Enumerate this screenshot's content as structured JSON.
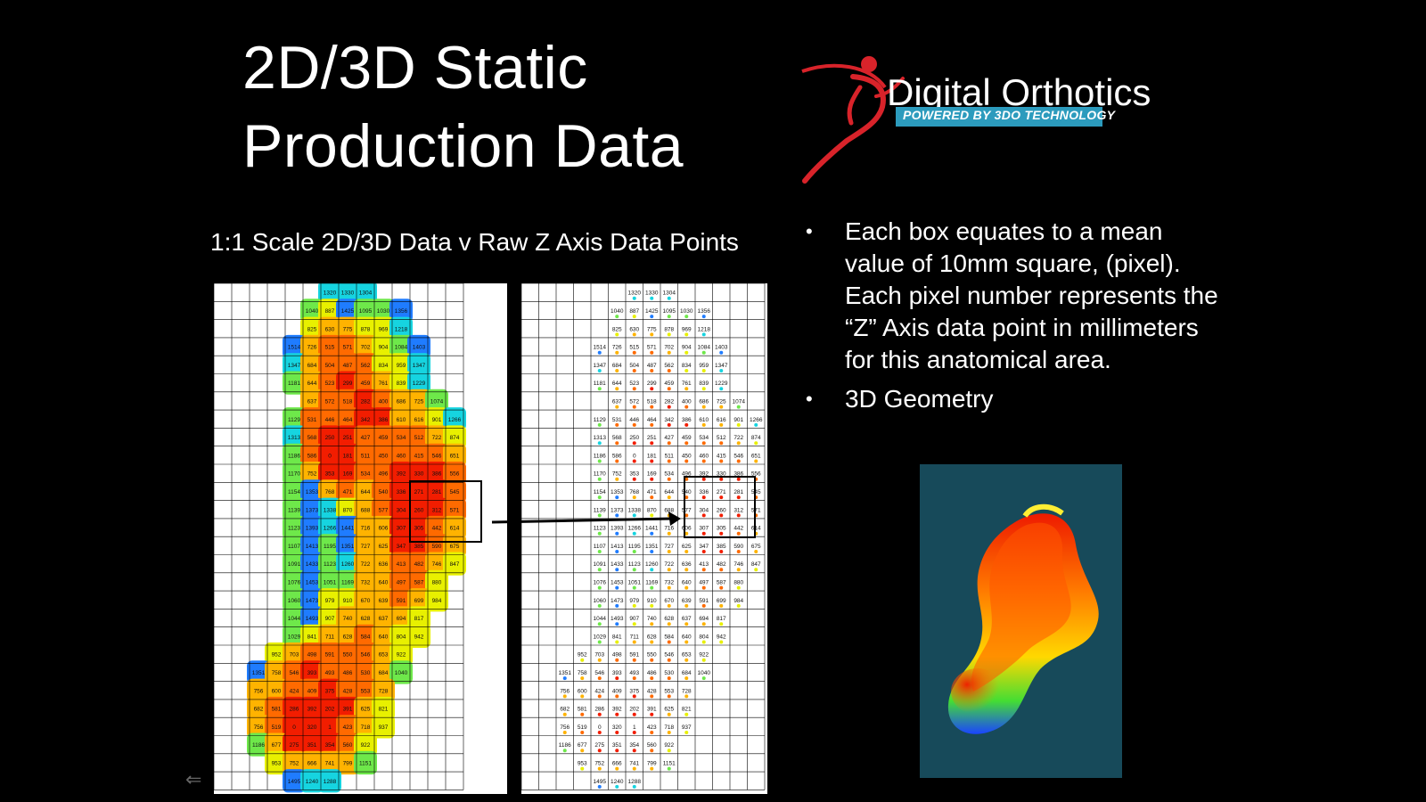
{
  "slide": {
    "title_line1": "2D/3D Static",
    "title_line2": "Production Data",
    "subtitle": "1:1 Scale 2D/3D Data  v  Raw Z Axis Data Points"
  },
  "logo": {
    "name": "Digital Orthotics",
    "tagline": "POWERED BY 3DO TECHNOLOGY"
  },
  "bullets": [
    {
      "text": "Each box equates to a mean value of 10mm square, (pixel). Each pixel number represents the “Z” Axis data point in millimeters for this anatomical area."
    },
    {
      "text": "3D Geometry"
    }
  ],
  "grid": {
    "rows": [
      [
        "",
        "",
        "",
        "",
        "",
        "",
        "1320",
        "1330",
        "1304",
        "",
        "",
        "",
        "",
        ""
      ],
      [
        "",
        "",
        "",
        "",
        "",
        "1040",
        "887",
        "1425",
        "1095",
        "1030",
        "1356",
        "",
        "",
        ""
      ],
      [
        "",
        "",
        "",
        "",
        "",
        "825",
        "630",
        "775",
        "878",
        "969",
        "1218",
        "",
        "",
        ""
      ],
      [
        "",
        "",
        "",
        "",
        "1514",
        "726",
        "515",
        "571",
        "702",
        "904",
        "1084",
        "1403",
        "",
        ""
      ],
      [
        "",
        "",
        "",
        "",
        "1347",
        "684",
        "504",
        "487",
        "562",
        "834",
        "959",
        "1347",
        "",
        ""
      ],
      [
        "",
        "",
        "",
        "",
        "1181",
        "644",
        "523",
        "299",
        "459",
        "761",
        "839",
        "1229",
        "",
        ""
      ],
      [
        "",
        "",
        "",
        "",
        "",
        "637",
        "572",
        "518",
        "282",
        "400",
        "686",
        "725",
        "1074",
        ""
      ],
      [
        "",
        "",
        "",
        "",
        "1129",
        "531",
        "446",
        "464",
        "342",
        "386",
        "610",
        "616",
        "901",
        "1266"
      ],
      [
        "",
        "",
        "",
        "",
        "1313",
        "568",
        "250",
        "251",
        "427",
        "459",
        "534",
        "512",
        "722",
        "874"
      ],
      [
        "",
        "",
        "",
        "",
        "1186",
        "586",
        "0",
        "181",
        "511",
        "450",
        "460",
        "415",
        "546",
        "651"
      ],
      [
        "",
        "",
        "",
        "",
        "1170",
        "752",
        "353",
        "169",
        "534",
        "496",
        "392",
        "330",
        "386",
        "556"
      ],
      [
        "",
        "",
        "",
        "",
        "1154",
        "1353",
        "768",
        "471",
        "644",
        "540",
        "336",
        "271",
        "281",
        "545"
      ],
      [
        "",
        "",
        "",
        "",
        "1139",
        "1373",
        "1338",
        "870",
        "688",
        "577",
        "304",
        "260",
        "312",
        "571"
      ],
      [
        "",
        "",
        "",
        "",
        "1123",
        "1393",
        "1266",
        "1441",
        "716",
        "606",
        "307",
        "305",
        "442",
        "614"
      ],
      [
        "",
        "",
        "",
        "",
        "1107",
        "1413",
        "1195",
        "1351",
        "727",
        "625",
        "347",
        "385",
        "590",
        "675"
      ],
      [
        "",
        "",
        "",
        "",
        "1091",
        "1433",
        "1123",
        "1260",
        "722",
        "636",
        "413",
        "482",
        "746",
        "847"
      ],
      [
        "",
        "",
        "",
        "",
        "1076",
        "1453",
        "1051",
        "1169",
        "732",
        "640",
        "497",
        "587",
        "880",
        ""
      ],
      [
        "",
        "",
        "",
        "",
        "1060",
        "1473",
        "979",
        "910",
        "670",
        "639",
        "591",
        "699",
        "984",
        ""
      ],
      [
        "",
        "",
        "",
        "",
        "1044",
        "1493",
        "907",
        "740",
        "628",
        "637",
        "694",
        "817",
        "",
        ""
      ],
      [
        "",
        "",
        "",
        "",
        "1029",
        "841",
        "711",
        "628",
        "584",
        "640",
        "804",
        "942",
        "",
        ""
      ],
      [
        "",
        "",
        "",
        "952",
        "703",
        "498",
        "591",
        "550",
        "546",
        "653",
        "922",
        "",
        "",
        ""
      ],
      [
        "",
        "",
        "1351",
        "758",
        "546",
        "393",
        "493",
        "486",
        "530",
        "684",
        "1040",
        "",
        "",
        ""
      ],
      [
        "",
        "",
        "756",
        "600",
        "424",
        "409",
        "375",
        "428",
        "553",
        "728",
        "",
        "",
        "",
        ""
      ],
      [
        "",
        "",
        "682",
        "581",
        "286",
        "392",
        "202",
        "391",
        "625",
        "821",
        "",
        "",
        "",
        ""
      ],
      [
        "",
        "",
        "756",
        "519",
        "0",
        "320",
        "1",
        "423",
        "718",
        "937",
        "",
        "",
        "",
        ""
      ],
      [
        "",
        "",
        "1186",
        "677",
        "275",
        "351",
        "354",
        "560",
        "922",
        "",
        "",
        "",
        "",
        ""
      ],
      [
        "",
        "",
        "",
        "953",
        "752",
        "666",
        "741",
        "799",
        "1151",
        "",
        "",
        "",
        "",
        ""
      ],
      [
        "",
        "",
        "",
        "",
        "1495",
        "1240",
        "1288",
        "",
        "",
        "",
        "",
        "",
        "",
        ""
      ]
    ]
  },
  "colors": {
    "background": "#000000",
    "text": "#ffffff",
    "logo_red": "#d8232a",
    "logo_blue": "#2c9bbd",
    "geometry_bg": "#174a5a"
  },
  "icons": {
    "back": "back-arrow-icon"
  }
}
